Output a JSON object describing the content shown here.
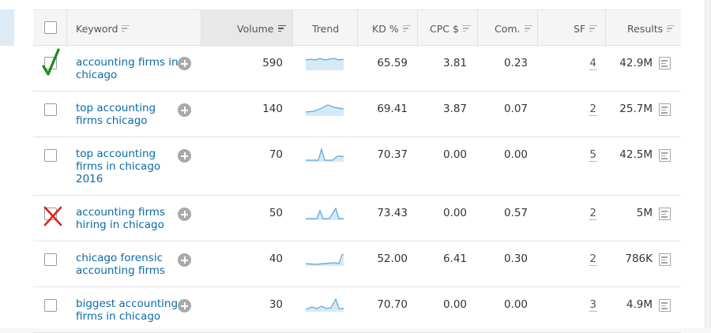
{
  "header": {
    "keyword": "Keyword",
    "volume": "Volume",
    "trend": "Trend",
    "kd": "KD %",
    "cpc": "CPC $",
    "com": "Com.",
    "sf": "SF",
    "results": "Results"
  },
  "rows": [
    {
      "keyword_line1": "accounting firms in",
      "keyword_line2": "chicago",
      "keyword_line3": "",
      "volume": "590",
      "kd": "65.59",
      "cpc": "3.81",
      "com": "0.23",
      "sf": "4",
      "results": "42.9M",
      "mark": "check"
    },
    {
      "keyword_line1": "top accounting",
      "keyword_line2": "firms chicago",
      "keyword_line3": "",
      "volume": "140",
      "kd": "69.41",
      "cpc": "3.87",
      "com": "0.07",
      "sf": "2",
      "results": "25.7M",
      "mark": ""
    },
    {
      "keyword_line1": "top accounting",
      "keyword_line2": "firms in chicago",
      "keyword_line3": "2016",
      "volume": "70",
      "kd": "70.37",
      "cpc": "0.00",
      "com": "0.00",
      "sf": "5",
      "results": "42.5M",
      "mark": ""
    },
    {
      "keyword_line1": "accounting firms",
      "keyword_line2": "hiring in chicago",
      "keyword_line3": "",
      "volume": "50",
      "kd": "73.43",
      "cpc": "0.00",
      "com": "0.57",
      "sf": "2",
      "results": "5M",
      "mark": "cross"
    },
    {
      "keyword_line1": "chicago forensic",
      "keyword_line2": "accounting firms",
      "keyword_line3": "",
      "volume": "40",
      "kd": "52.00",
      "cpc": "6.41",
      "com": "0.30",
      "sf": "2",
      "results": "786K",
      "mark": ""
    },
    {
      "keyword_line1": "biggest accounting",
      "keyword_line2": "firms in chicago",
      "keyword_line3": "",
      "volume": "30",
      "kd": "70.70",
      "cpc": "0.00",
      "com": "0.00",
      "sf": "3",
      "results": "4.9M",
      "mark": ""
    }
  ],
  "colors": {
    "link": "#0a6aa8",
    "trend_line": "#5aa5da",
    "trend_fill": "#d6e9f7",
    "check_mark": "#1e8a1e",
    "cross_mark": "#e02020"
  },
  "icons": [
    "sort-icon",
    "plus-icon",
    "serp-features-icon",
    "check-mark-icon",
    "cross-mark-icon"
  ]
}
